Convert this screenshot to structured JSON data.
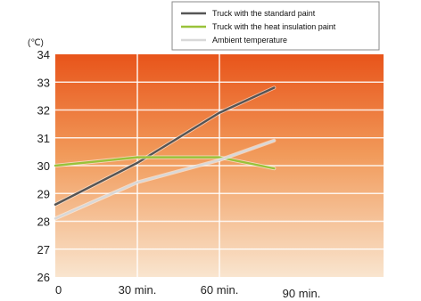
{
  "chart_data": {
    "type": "line",
    "title": "",
    "xlabel": "",
    "ylabel": "",
    "y_unit": "(℃)",
    "x": [
      0,
      30,
      60,
      80
    ],
    "xlim": [
      0,
      80
    ],
    "ylim": [
      26,
      34
    ],
    "x_ticks": [
      {
        "value": 0,
        "label": "0"
      },
      {
        "value": 30,
        "label": "30 min."
      },
      {
        "value": 60,
        "label": "60 min."
      },
      {
        "value": 90,
        "label": "90 min."
      }
    ],
    "y_ticks": [
      "26",
      "27",
      "28",
      "29",
      "30",
      "31",
      "32",
      "33",
      "34"
    ],
    "series": [
      {
        "name": "Truck with the standard paint",
        "color": "#555555",
        "values": [
          28.6,
          30.1,
          31.9,
          32.8
        ]
      },
      {
        "name": "Truck with the heat insulation paint",
        "color": "#99c23a",
        "values": [
          30.0,
          30.3,
          30.3,
          29.9
        ]
      },
      {
        "name": "Ambient temperature",
        "color": "#d8d8d8",
        "values": [
          28.1,
          29.4,
          30.2,
          30.9
        ]
      }
    ],
    "grid": true,
    "legend_position": "top-right",
    "colors": {
      "gradient_top": "#e8541a",
      "gradient_bottom": "#f9e5cf",
      "grid": "#ffffff"
    }
  }
}
